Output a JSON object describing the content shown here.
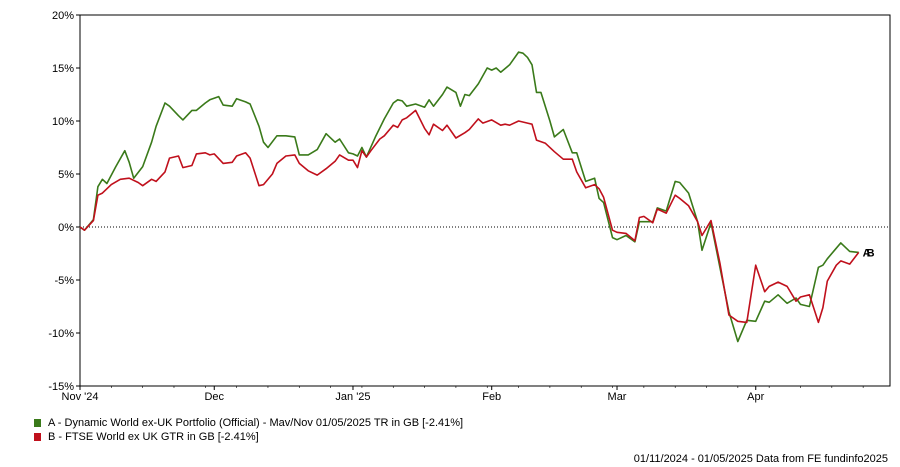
{
  "chart_data": {
    "type": "line",
    "title": "",
    "xlabel": "",
    "ylabel": "",
    "ylim": [
      -15,
      20
    ],
    "y_ticks": [
      20,
      15,
      10,
      5,
      0,
      -5,
      -10,
      -15
    ],
    "y_tick_labels": [
      "20%",
      "15%",
      "10%",
      "5%",
      "0%",
      "-5%",
      "-10%",
      "-15%"
    ],
    "x_tick_labels": [
      "Nov '24",
      "Dec",
      "Jan '25",
      "Feb",
      "Mar",
      "Apr"
    ],
    "x_tick_dates": [
      "2024-11-01",
      "2024-12-01",
      "2025-01-01",
      "2025-02-01",
      "2025-03-01",
      "2025-04-01"
    ],
    "x_range": [
      "2024-11-01",
      "2025-05-01"
    ],
    "grid": false,
    "zero_line": "dotted",
    "legend_position": "bottom-left",
    "series": [
      {
        "name": "A - Dynamic World ex-UK Portfolio (Official) - Mav/Nov 01/05/2025 TR in GB [-2.41%]",
        "end_label": "A",
        "color": "#3a7a1a",
        "points": [
          [
            "2024-11-01",
            0.0
          ],
          [
            "2024-11-02",
            -0.3
          ],
          [
            "2024-11-04",
            0.7
          ],
          [
            "2024-11-05",
            3.8
          ],
          [
            "2024-11-06",
            4.5
          ],
          [
            "2024-11-07",
            4.1
          ],
          [
            "2024-11-09",
            5.7
          ],
          [
            "2024-11-11",
            7.2
          ],
          [
            "2024-11-12",
            6.1
          ],
          [
            "2024-11-13",
            4.6
          ],
          [
            "2024-11-15",
            5.7
          ],
          [
            "2024-11-17",
            8.0
          ],
          [
            "2024-11-18",
            9.5
          ],
          [
            "2024-11-20",
            11.7
          ],
          [
            "2024-11-21",
            11.4
          ],
          [
            "2024-11-23",
            10.5
          ],
          [
            "2024-11-24",
            10.1
          ],
          [
            "2024-11-26",
            11.0
          ],
          [
            "2024-11-27",
            11.0
          ],
          [
            "2024-11-29",
            11.7
          ],
          [
            "2024-11-30",
            12.0
          ],
          [
            "2024-12-02",
            12.3
          ],
          [
            "2024-12-03",
            11.5
          ],
          [
            "2024-12-05",
            11.4
          ],
          [
            "2024-12-06",
            12.1
          ],
          [
            "2024-12-08",
            11.8
          ],
          [
            "2024-12-09",
            11.6
          ],
          [
            "2024-12-11",
            9.5
          ],
          [
            "2024-12-12",
            8.0
          ],
          [
            "2024-12-13",
            7.5
          ],
          [
            "2024-12-15",
            8.6
          ],
          [
            "2024-12-17",
            8.6
          ],
          [
            "2024-12-19",
            8.5
          ],
          [
            "2024-12-20",
            6.8
          ],
          [
            "2024-12-22",
            6.8
          ],
          [
            "2024-12-24",
            7.3
          ],
          [
            "2024-12-26",
            8.8
          ],
          [
            "2024-12-28",
            8.0
          ],
          [
            "2024-12-29",
            8.3
          ],
          [
            "2024-12-31",
            7.0
          ],
          [
            "2025-01-01",
            6.9
          ],
          [
            "2025-01-02",
            6.7
          ],
          [
            "2025-01-03",
            7.5
          ],
          [
            "2025-01-04",
            6.6
          ],
          [
            "2025-01-06",
            8.5
          ],
          [
            "2025-01-08",
            10.2
          ],
          [
            "2025-01-10",
            11.7
          ],
          [
            "2025-01-11",
            12.0
          ],
          [
            "2025-01-12",
            11.9
          ],
          [
            "2025-01-13",
            11.4
          ],
          [
            "2025-01-15",
            11.6
          ],
          [
            "2025-01-17",
            11.3
          ],
          [
            "2025-01-18",
            12.0
          ],
          [
            "2025-01-19",
            11.4
          ],
          [
            "2025-01-21",
            12.5
          ],
          [
            "2025-01-22",
            13.2
          ],
          [
            "2025-01-24",
            12.7
          ],
          [
            "2025-01-25",
            11.4
          ],
          [
            "2025-01-26",
            12.5
          ],
          [
            "2025-01-27",
            12.4
          ],
          [
            "2025-01-29",
            13.5
          ],
          [
            "2025-01-31",
            15.0
          ],
          [
            "2025-02-01",
            14.8
          ],
          [
            "2025-02-02",
            15.0
          ],
          [
            "2025-02-03",
            14.6
          ],
          [
            "2025-02-05",
            15.3
          ],
          [
            "2025-02-07",
            16.5
          ],
          [
            "2025-02-08",
            16.4
          ],
          [
            "2025-02-09",
            16.0
          ],
          [
            "2025-02-10",
            15.3
          ],
          [
            "2025-02-11",
            12.7
          ],
          [
            "2025-02-12",
            12.7
          ],
          [
            "2025-02-14",
            10.0
          ],
          [
            "2025-02-15",
            8.5
          ],
          [
            "2025-02-17",
            9.2
          ],
          [
            "2025-02-19",
            7.0
          ],
          [
            "2025-02-20",
            7.0
          ],
          [
            "2025-02-22",
            4.3
          ],
          [
            "2025-02-24",
            4.6
          ],
          [
            "2025-02-25",
            2.7
          ],
          [
            "2025-02-26",
            2.3
          ],
          [
            "2025-02-28",
            -1.0
          ],
          [
            "2025-03-01",
            -1.2
          ],
          [
            "2025-03-03",
            -0.8
          ],
          [
            "2025-03-05",
            -1.4
          ],
          [
            "2025-03-06",
            0.5
          ],
          [
            "2025-03-07",
            0.5
          ],
          [
            "2025-03-09",
            0.5
          ],
          [
            "2025-03-10",
            1.8
          ],
          [
            "2025-03-12",
            1.5
          ],
          [
            "2025-03-14",
            4.3
          ],
          [
            "2025-03-15",
            4.2
          ],
          [
            "2025-03-17",
            3.2
          ],
          [
            "2025-03-19",
            0.5
          ],
          [
            "2025-03-20",
            -2.2
          ],
          [
            "2025-03-22",
            0.4
          ],
          [
            "2025-03-24",
            -3.8
          ],
          [
            "2025-03-26",
            -8.0
          ],
          [
            "2025-03-28",
            -10.8
          ],
          [
            "2025-03-30",
            -8.8
          ],
          [
            "2025-04-01",
            -8.9
          ],
          [
            "2025-04-03",
            -7.0
          ],
          [
            "2025-04-04",
            -7.1
          ],
          [
            "2025-04-06",
            -6.4
          ],
          [
            "2025-04-08",
            -7.2
          ],
          [
            "2025-04-10",
            -6.7
          ],
          [
            "2025-04-11",
            -7.3
          ],
          [
            "2025-04-13",
            -7.5
          ],
          [
            "2025-04-15",
            -3.8
          ],
          [
            "2025-04-16",
            -3.6
          ],
          [
            "2025-04-17",
            -3.0
          ],
          [
            "2025-04-19",
            -2.0
          ],
          [
            "2025-04-20",
            -1.5
          ],
          [
            "2025-04-22",
            -2.3
          ],
          [
            "2025-04-24",
            -2.4
          ]
        ]
      },
      {
        "name": "B - FTSE World ex UK GTR in GB [-2.41%]",
        "end_label": "B",
        "color": "#c0101c",
        "points": [
          [
            "2024-11-01",
            0.0
          ],
          [
            "2024-11-02",
            -0.3
          ],
          [
            "2024-11-04",
            0.6
          ],
          [
            "2024-11-05",
            3.0
          ],
          [
            "2024-11-06",
            3.2
          ],
          [
            "2024-11-08",
            4.0
          ],
          [
            "2024-11-10",
            4.5
          ],
          [
            "2024-11-12",
            4.6
          ],
          [
            "2024-11-14",
            4.2
          ],
          [
            "2024-11-15",
            3.9
          ],
          [
            "2024-11-17",
            4.5
          ],
          [
            "2024-11-18",
            4.3
          ],
          [
            "2024-11-20",
            5.2
          ],
          [
            "2024-11-21",
            6.5
          ],
          [
            "2024-11-23",
            6.7
          ],
          [
            "2024-11-24",
            5.6
          ],
          [
            "2024-11-26",
            5.8
          ],
          [
            "2024-11-27",
            6.9
          ],
          [
            "2024-11-29",
            7.0
          ],
          [
            "2024-11-30",
            6.8
          ],
          [
            "2024-12-01",
            6.9
          ],
          [
            "2024-12-03",
            6.0
          ],
          [
            "2024-12-05",
            6.1
          ],
          [
            "2024-12-06",
            6.7
          ],
          [
            "2024-12-08",
            7.0
          ],
          [
            "2024-12-09",
            6.5
          ],
          [
            "2024-12-11",
            3.9
          ],
          [
            "2024-12-12",
            4.0
          ],
          [
            "2024-12-14",
            5.0
          ],
          [
            "2024-12-15",
            6.0
          ],
          [
            "2024-12-17",
            6.7
          ],
          [
            "2024-12-19",
            6.8
          ],
          [
            "2024-12-20",
            6.0
          ],
          [
            "2024-12-22",
            5.3
          ],
          [
            "2024-12-24",
            4.9
          ],
          [
            "2024-12-26",
            5.5
          ],
          [
            "2024-12-28",
            6.2
          ],
          [
            "2024-12-29",
            6.8
          ],
          [
            "2024-12-31",
            6.3
          ],
          [
            "2025-01-01",
            6.3
          ],
          [
            "2025-01-02",
            5.6
          ],
          [
            "2025-01-03",
            7.2
          ],
          [
            "2025-01-04",
            6.6
          ],
          [
            "2025-01-05",
            7.2
          ],
          [
            "2025-01-07",
            8.3
          ],
          [
            "2025-01-08",
            8.6
          ],
          [
            "2025-01-10",
            9.6
          ],
          [
            "2025-01-11",
            9.4
          ],
          [
            "2025-01-12",
            10.1
          ],
          [
            "2025-01-13",
            10.3
          ],
          [
            "2025-01-15",
            11.0
          ],
          [
            "2025-01-17",
            9.3
          ],
          [
            "2025-01-18",
            8.7
          ],
          [
            "2025-01-19",
            9.7
          ],
          [
            "2025-01-21",
            9.1
          ],
          [
            "2025-01-22",
            9.6
          ],
          [
            "2025-01-24",
            8.4
          ],
          [
            "2025-01-26",
            8.9
          ],
          [
            "2025-01-27",
            9.2
          ],
          [
            "2025-01-29",
            10.2
          ],
          [
            "2025-01-30",
            9.8
          ],
          [
            "2025-02-01",
            10.1
          ],
          [
            "2025-02-03",
            9.6
          ],
          [
            "2025-02-04",
            9.7
          ],
          [
            "2025-02-05",
            9.6
          ],
          [
            "2025-02-07",
            10.0
          ],
          [
            "2025-02-09",
            9.8
          ],
          [
            "2025-02-10",
            9.7
          ],
          [
            "2025-02-11",
            8.2
          ],
          [
            "2025-02-13",
            7.9
          ],
          [
            "2025-02-15",
            7.1
          ],
          [
            "2025-02-17",
            6.4
          ],
          [
            "2025-02-19",
            6.4
          ],
          [
            "2025-02-20",
            5.2
          ],
          [
            "2025-02-22",
            3.7
          ],
          [
            "2025-02-24",
            4.0
          ],
          [
            "2025-02-25",
            3.6
          ],
          [
            "2025-02-26",
            2.8
          ],
          [
            "2025-02-28",
            -0.3
          ],
          [
            "2025-03-01",
            -0.5
          ],
          [
            "2025-03-03",
            -0.6
          ],
          [
            "2025-03-05",
            -1.3
          ],
          [
            "2025-03-06",
            0.9
          ],
          [
            "2025-03-07",
            1.0
          ],
          [
            "2025-03-09",
            0.4
          ],
          [
            "2025-03-10",
            1.7
          ],
          [
            "2025-03-12",
            1.3
          ],
          [
            "2025-03-14",
            3.0
          ],
          [
            "2025-03-15",
            2.7
          ],
          [
            "2025-03-17",
            2.0
          ],
          [
            "2025-03-19",
            0.5
          ],
          [
            "2025-03-20",
            -0.8
          ],
          [
            "2025-03-22",
            0.6
          ],
          [
            "2025-03-24",
            -3.4
          ],
          [
            "2025-03-26",
            -8.3
          ],
          [
            "2025-03-28",
            -8.9
          ],
          [
            "2025-03-30",
            -9.0
          ],
          [
            "2025-04-01",
            -3.6
          ],
          [
            "2025-04-03",
            -6.1
          ],
          [
            "2025-04-04",
            -5.6
          ],
          [
            "2025-04-06",
            -5.2
          ],
          [
            "2025-04-08",
            -5.6
          ],
          [
            "2025-04-10",
            -7.0
          ],
          [
            "2025-04-11",
            -6.6
          ],
          [
            "2025-04-13",
            -6.4
          ],
          [
            "2025-04-15",
            -9.0
          ],
          [
            "2025-04-16",
            -7.6
          ],
          [
            "2025-04-17",
            -5.1
          ],
          [
            "2025-04-19",
            -3.6
          ],
          [
            "2025-04-20",
            -3.2
          ],
          [
            "2025-04-22",
            -3.5
          ],
          [
            "2025-04-24",
            -2.4
          ]
        ]
      }
    ]
  },
  "footer": {
    "text": "01/11/2024 - 01/05/2025 Data from FE fundinfo2025"
  }
}
